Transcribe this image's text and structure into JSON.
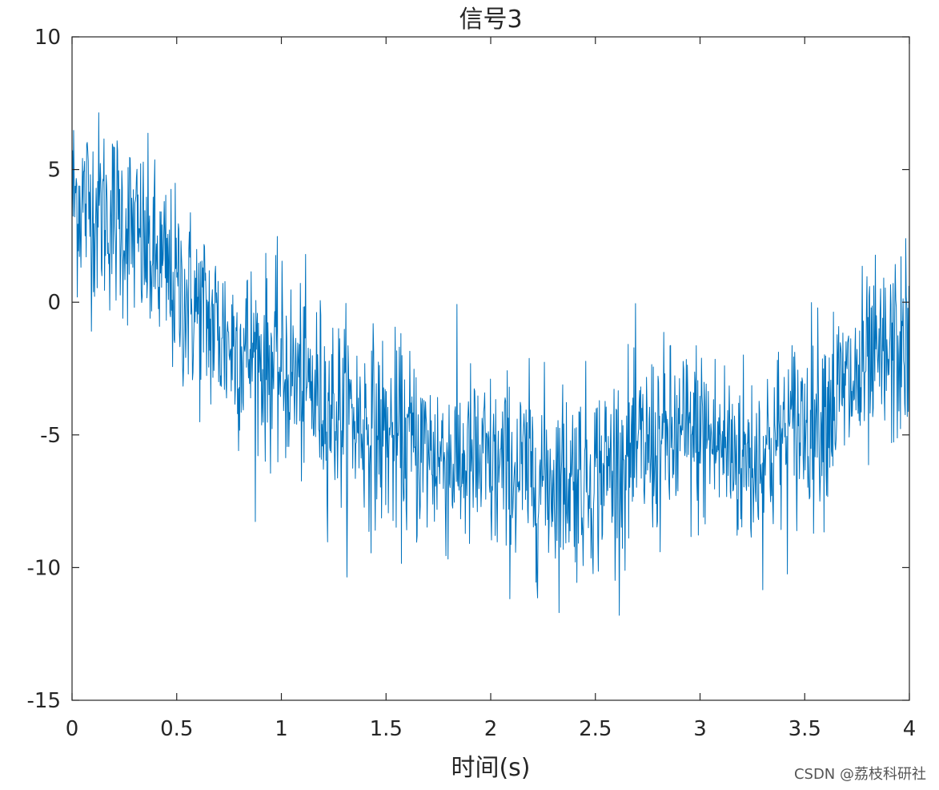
{
  "chart_data": {
    "type": "line",
    "title": "信号3",
    "xlabel": "时间(s)",
    "ylabel": "",
    "xlim": [
      0,
      4
    ],
    "ylim": [
      -15,
      10
    ],
    "xticks": [
      0,
      0.5,
      1,
      1.5,
      2,
      2.5,
      3,
      3.5,
      4
    ],
    "xtick_labels": [
      "0",
      "0.5",
      "1",
      "1.5",
      "2",
      "2.5",
      "3",
      "3.5",
      "4"
    ],
    "yticks": [
      10,
      5,
      0,
      -5,
      -10,
      -15
    ],
    "ytick_labels": [
      "10",
      "5",
      "0",
      "-5",
      "-10",
      "-15"
    ],
    "grid": false,
    "legend": "none",
    "series": [
      {
        "color": "#0072BD",
        "trend_x": [
          0,
          0.25,
          0.5,
          0.75,
          1.0,
          1.25,
          1.5,
          1.75,
          2.0,
          2.25,
          2.5,
          2.75,
          3.0,
          3.25,
          3.5,
          3.75,
          4.0
        ],
        "trend_y": [
          4.0,
          3.0,
          0.5,
          -1.5,
          -2.5,
          -4.0,
          -5.0,
          -5.8,
          -6.3,
          -6.6,
          -6.5,
          -5.5,
          -5.0,
          -6.0,
          -4.5,
          -3.0,
          -1.5
        ],
        "noise_std": 1.8,
        "n_points": 1600
      }
    ]
  },
  "watermark": "CSDN @荔枝科研社"
}
